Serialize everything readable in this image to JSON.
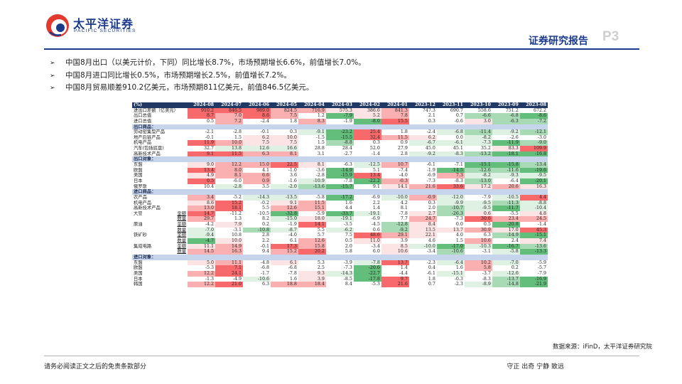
{
  "header": {
    "logo_cn": "太平洋证券",
    "logo_en": "PACIFIC SECURITIES",
    "report_title": "证券研究报告",
    "page_num": "P3"
  },
  "bullets": [
    "中国8月出口（以美元计价，下同）同比增长8.7%，市场预期增长6.6%，前值增长7.0%。",
    "中国8月进口同比增长0.5%，市场预期增长2.5%，前值增长7.2%。",
    "中国8月贸易顺差910.2亿美元，市场预期811亿美元，前值846.5亿美元。"
  ],
  "table": {
    "header": [
      "(%)",
      "2024-08",
      "2024-07",
      "2024-06",
      "2024-05",
      "2024-04",
      "2024-03",
      "2024-02",
      "2024-01",
      "2023-12",
      "2023-11",
      "2023-10",
      "2023-09",
      "2023-08"
    ],
    "rows": [
      {
        "label": "进出口差额（亿美元）",
        "vals": [
          "910.2",
          "846.5",
          "989.0",
          "824.5",
          "716.9",
          "575.3",
          "386.6",
          "841.3",
          "747.3",
          "690.7",
          "558.6",
          "751.2",
          "672.2"
        ],
        "c": [
          "r1",
          "r1",
          "r1",
          "r2",
          "r2",
          "r3",
          "r3",
          "r2",
          "",
          "",
          "",
          "",
          ""
        ]
      },
      {
        "label": "出口总值",
        "vals": [
          "8.7",
          "7.0",
          "8.6",
          "7.5",
          "1.2",
          "-7.9",
          "5.2",
          "7.8",
          "2.1",
          "0.7",
          "-6.6",
          "-6.8",
          "-8.6"
        ],
        "c": [
          "r1",
          "r2",
          "r1",
          "r2",
          "",
          "g1",
          "r3",
          "r2",
          "",
          "",
          "g2",
          "g2",
          "g1"
        ]
      },
      {
        "label": "进口总值",
        "vals": [
          "0.5",
          "7.2",
          "-2.4",
          "1.8",
          "8.3",
          "-1.9",
          "-8.0",
          "15.5",
          "0.3",
          "-0.6",
          "3.0",
          "-6.3",
          "-7.2"
        ],
        "c": [
          "",
          "r2",
          "",
          "",
          "r2",
          "",
          "g1",
          "r1",
          "",
          "",
          "r3",
          "g2",
          "g2"
        ]
      },
      {
        "section": "出口商品："
      },
      {
        "label": "劳动密集型产品",
        "vals": [
          "-2.1",
          "-2.8",
          "-0.1",
          "0.3",
          "-9.1",
          "-23.2",
          "25.4",
          "1.8",
          "-2.4",
          "-6.8",
          "-11.4",
          "-9.2",
          "-12.1"
        ],
        "c": [
          "",
          "",
          "",
          "",
          "g3",
          "g1",
          "r1",
          "",
          "",
          "g3",
          "g2",
          "g3",
          "g2"
        ]
      },
      {
        "label": "地产后链产品",
        "vals": [
          "-0.1",
          "1.5",
          "6.2",
          "10.0",
          "-1.5",
          "-15.5",
          "32.4",
          "11.5",
          "6.2",
          "0.0",
          "-8.2",
          "-2.6",
          "-3.0"
        ],
        "c": [
          "",
          "",
          "r3",
          "r3",
          "",
          "g1",
          "r1",
          "r2",
          "r3",
          "",
          "g3",
          "",
          ""
        ]
      },
      {
        "label": "机电产品",
        "vals": [
          "11.9",
          "10.0",
          "7.5",
          "7.5",
          "1.5",
          "-8.8",
          "0.3",
          "0.9",
          "-6.7",
          "-6.1",
          "-7.3",
          "-11.9",
          "-9.0"
        ],
        "c": [
          "r1",
          "r2",
          "r3",
          "r3",
          "",
          "g2",
          "",
          "",
          "g3",
          "g3",
          "g3",
          "g1",
          "g2"
        ]
      },
      {
        "label": "汽车(包括底盘)",
        "vals": [
          "32.7",
          "13.8",
          "12.6",
          "16.6",
          "28.8",
          "28.4",
          "52.0",
          "27.9",
          "45.0",
          "45.1",
          "35.2",
          "83.3",
          "109.9"
        ],
        "c": [
          "",
          "g3",
          "g3",
          "g3",
          "",
          "",
          "",
          "",
          "",
          "",
          "",
          "r3",
          "r1"
        ]
      },
      {
        "label": "高新技术产品",
        "vals": [
          "9.1",
          "11.5",
          "6.3",
          "8.1",
          "3.1",
          "-2.7",
          "-1.4",
          "2.8",
          "-9.2",
          "-8.3",
          "-13.2",
          "-18.1",
          "-16.8"
        ],
        "c": [
          "r1",
          "r1",
          "r2",
          "r2",
          "",
          "",
          "",
          "",
          "g3",
          "g3",
          "g2",
          "g1",
          "g1"
        ]
      },
      {
        "section": "出口对象："
      },
      {
        "label": "东盟",
        "vals": [
          "9.0",
          "12.2",
          "15.0",
          "22.5",
          "8.1",
          "-6.3",
          "-12.5",
          "10.7",
          "-6.1",
          "-7.1",
          "-15.1",
          "-15.8",
          "-13.4"
        ],
        "c": [
          "r3",
          "r2",
          "r2",
          "r1",
          "r3",
          "",
          "g3",
          "r2",
          "",
          "",
          "g1",
          "g1",
          "g2"
        ]
      },
      {
        "label": "欧盟",
        "vals": [
          "13.4",
          "8.0",
          "4.1",
          "-1.0",
          "-3.6",
          "-14.9",
          "5.1",
          "-7.4",
          "-1.9",
          "-14.5",
          "-12.6",
          "-11.6",
          "-19.6"
        ],
        "c": [
          "r1",
          "r2",
          "",
          "",
          "",
          "g1",
          "",
          "",
          "",
          "g1",
          "g2",
          "g2",
          "g1"
        ]
      },
      {
        "label": "美国",
        "vals": [
          "4.9",
          "8.1",
          "6.6",
          "3.6",
          "-2.8",
          "-15.9",
          "13.4",
          "-4.0",
          "-6.9",
          "7.3",
          "-8.2",
          "-9.3",
          "-9.5"
        ],
        "c": [
          "r3",
          "r2",
          "r2",
          "",
          "",
          "g1",
          "r1",
          "",
          "",
          "r2",
          "g3",
          "g3",
          "g3"
        ]
      },
      {
        "label": "日本",
        "vals": [
          "0.5",
          "-6.0",
          "0.9",
          "-1.6",
          "-10.9",
          "-7.8",
          "-22.2",
          "-0.3",
          "-7.3",
          "-8.3",
          "-13.0",
          "-6.4",
          "-20.1"
        ],
        "c": [
          "r1",
          "",
          "r2",
          "",
          "g3",
          "",
          "g1",
          "r2",
          "",
          "",
          "g2",
          "",
          "g1"
        ]
      },
      {
        "label": "俄罗斯",
        "vals": [
          "10.4",
          "-2.8",
          "3.5",
          "-2.0",
          "-13.6",
          "-15.7",
          "9.1",
          "14.1",
          "21.6",
          "33.6",
          "17.2",
          "20.6",
          "16.3"
        ],
        "c": [
          "",
          "g3",
          "",
          "g3",
          "g2",
          "g1",
          "",
          "r3",
          "r2",
          "r1",
          "r3",
          "r2",
          "r3"
        ]
      },
      {
        "section": "进口商品："
      },
      {
        "label": "农产品",
        "vals": [
          "3.4",
          "-5.2",
          "-14.3",
          "-13.5",
          "-5.8",
          "-17.2",
          "-6.9",
          "-10.0",
          "-0.9",
          "-12.0",
          "-7.9",
          "-10.5",
          "4.4"
        ],
        "c": [
          "r2",
          "",
          "g3",
          "g3",
          "",
          "g1",
          "",
          "g3",
          "r2",
          "g3",
          "",
          "g3",
          "r1"
        ]
      },
      {
        "label": "机电产品",
        "vals": [
          "8.6",
          "15.2",
          "-0.2",
          "9.1",
          "11.5",
          "1.6",
          "2.2",
          "4.2",
          "0.3",
          "-9.9",
          "-9.5",
          "-11.3",
          "-8.8"
        ],
        "c": [
          "r3",
          "r1",
          "",
          "r3",
          "r2",
          "",
          "",
          "",
          "",
          "g3",
          "g3",
          "g2",
          "g3"
        ]
      },
      {
        "label": "高新技术产品",
        "vals": [
          "13.0",
          "18.1",
          "5.5",
          "12.6",
          "15.1",
          "4.4",
          "1.4",
          "8.1",
          "2.0",
          "-10.7",
          "-9.5",
          "-11.7",
          "-10.4"
        ],
        "c": [
          "r2",
          "r1",
          "",
          "r2",
          "r2",
          "",
          "",
          "",
          "",
          "g2",
          "g3",
          "g1",
          "g3"
        ]
      },
      {
        "label": "大豆",
        "sub": "金额",
        "vals": [
          "14.7",
          "-11.2",
          "-10.5",
          "-32.8",
          "-5.9",
          "-33.7",
          "-19.1",
          "-7.8",
          "2.7",
          "-26.3",
          "0.6",
          "-5.5",
          "4.8"
        ],
        "c": [
          "r1",
          "",
          "",
          "g1",
          "",
          "g1",
          "g3",
          "",
          "r3",
          "g2",
          "r3",
          "",
          "r3"
        ]
      },
      {
        "label": "",
        "sub": "数量",
        "vals": [
          "29.7",
          "1.3",
          "8.2",
          "-15.0",
          "18.0",
          "-19.1",
          "-6.9",
          "7.7",
          "24.7",
          "-7.3",
          "30.6",
          "23.4",
          "24.5"
        ],
        "c": [
          "r2",
          "",
          "",
          "g3",
          "r3",
          "g3",
          "",
          "",
          "r2",
          "",
          "r1",
          "r2",
          "r2"
        ]
      },
      {
        "label": "原油",
        "sub": "金额",
        "vals": [
          "-4.2",
          "7.9",
          "0.2",
          "-1.9",
          "14.1",
          "-3.5",
          "-4.5",
          "-12.8",
          "8.4",
          "0.0",
          "0.5",
          "-20.8",
          "-1.4"
        ],
        "c": [
          "",
          "r3",
          "",
          "",
          "r1",
          "",
          "",
          "g2",
          "r3",
          "",
          "",
          "g1",
          ""
        ]
      },
      {
        "label": "",
        "sub": "数量",
        "vals": [
          "-7.0",
          "-3.1",
          "-10.8",
          "-8.7",
          "5.5",
          "-6.2",
          "0.6",
          "-9.2",
          "13.5",
          "13.7",
          "30.9",
          "17.0",
          "45.3"
        ],
        "c": [
          "g3",
          "",
          "g2",
          "g3",
          "",
          "g3",
          "",
          "g2",
          "r3",
          "r3",
          "r2",
          "r3",
          "r1"
        ]
      },
      {
        "label": "铁矿砂",
        "sub": "金额",
        "vals": [
          "-9.4",
          "10.8",
          "2.8",
          "-4.0",
          "5.7",
          "7.5",
          "48.6",
          "29.1",
          "22.1",
          "4.0",
          "6.3",
          "-14.9",
          "-15.1"
        ],
        "c": [
          "g3",
          "",
          "",
          "",
          "",
          "",
          "r1",
          "r2",
          "r3",
          "",
          "",
          "g2",
          "g1"
        ]
      },
      {
        "label": "",
        "sub": "数量",
        "vals": [
          "-4.7",
          "10.0",
          "2.2",
          "6.1",
          "12.6",
          "0.5",
          "11.0",
          "3.9",
          "4.6",
          "1.5",
          "10.6",
          "2.4",
          "7.4"
        ],
        "c": [
          "g1",
          "r3",
          "",
          "",
          "r2",
          "",
          "r3",
          "",
          "",
          "",
          "r2",
          "",
          "r3"
        ]
      },
      {
        "label": "集成电路",
        "sub": "金额",
        "vals": [
          "11.1",
          "14.9",
          "-0.1",
          "17.3",
          "15.8",
          "2.0",
          "-3.4",
          "8.5",
          "-10.0",
          "-17.0",
          "-10.3",
          "-16.7",
          "-13.6"
        ],
        "c": [
          "r3",
          "r2",
          "",
          "r1",
          "r2",
          "",
          "",
          "r3",
          "g3",
          "g1",
          "g3",
          "g1",
          "g2"
        ]
      },
      {
        "label": "",
        "sub": "数量",
        "vals": [
          "14.5",
          "16.3",
          "9.4",
          "15.2",
          "20.2",
          "5.8",
          "6.0",
          "10.6",
          "-3.4",
          "-10.6",
          "-3.1",
          "-5.8",
          "-13.3"
        ],
        "c": [
          "r2",
          "r2",
          "",
          "r2",
          "r1",
          "",
          "",
          "r3",
          "",
          "g2",
          "",
          "g3",
          "g1"
        ]
      },
      {
        "section": "进口对象："
      },
      {
        "label": "东盟",
        "vals": [
          "5.0",
          "11.1",
          "-4.8",
          "6.1",
          "5.3",
          "-3.9",
          "-7.8",
          "13.7",
          "-2.3",
          "-6.4",
          "10.2",
          "-7.0",
          "-5.9"
        ],
        "c": [
          "r3",
          "r2",
          "",
          "r3",
          "",
          "",
          "g3",
          "r1",
          "",
          "g3",
          "r2",
          "g3",
          ""
        ]
      },
      {
        "label": "欧盟",
        "vals": [
          "-5.3",
          "7.1",
          "-6.8",
          "-6.8",
          "2.5",
          "-7.3",
          "-20.6",
          "1.4",
          "0.4",
          "1.6",
          "5.8",
          "0.2",
          "-5.7"
        ],
        "c": [
          "",
          "r1",
          "",
          "",
          "",
          "",
          "g1",
          "",
          "",
          "",
          "r2",
          "",
          ""
        ]
      },
      {
        "label": "美国",
        "vals": [
          "12.2",
          "24.1",
          "-1.7",
          "-7.8",
          "9.3",
          "-14.3",
          "-22.7",
          "-4.4",
          "-6.1",
          "-15.1",
          "-3.7",
          "-12.6",
          "-7.9"
        ],
        "c": [
          "r2",
          "r1",
          "",
          "",
          "r3",
          "g3",
          "g1",
          "",
          "",
          "g3",
          "",
          "g3",
          ""
        ]
      },
      {
        "label": "日本",
        "vals": [
          "-1.3",
          "-4.9",
          "-10.6",
          "1.6",
          "3.9",
          "-8.5",
          "-17.8",
          "9.7",
          "1.8",
          "-0.3",
          "-8.3",
          "-13.7",
          "-16.9"
        ],
        "c": [
          "",
          "",
          "g3",
          "",
          "r3",
          "",
          "g1",
          "r1",
          "",
          "",
          "",
          "g2",
          "g1"
        ]
      },
      {
        "label": "韩国",
        "vals": [
          "12.2",
          "21.0",
          "6.3",
          "18.8",
          "18.4",
          "8.4",
          "-5.3",
          "21.6",
          "0.7",
          "-2.3",
          "-8.9",
          "-14.8",
          "-21.9"
        ],
        "c": [
          "r2",
          "r1",
          "",
          "r2",
          "r2",
          "",
          "",
          "r1",
          "",
          "",
          "g3",
          "g2",
          "g1"
        ]
      }
    ]
  },
  "source_note": "数据来源：iFinD，太平洋证券研究院",
  "footer": {
    "left": "请务必阅读正文之后的免责条款部分",
    "right": "守正 出奇 宁静 致远"
  }
}
